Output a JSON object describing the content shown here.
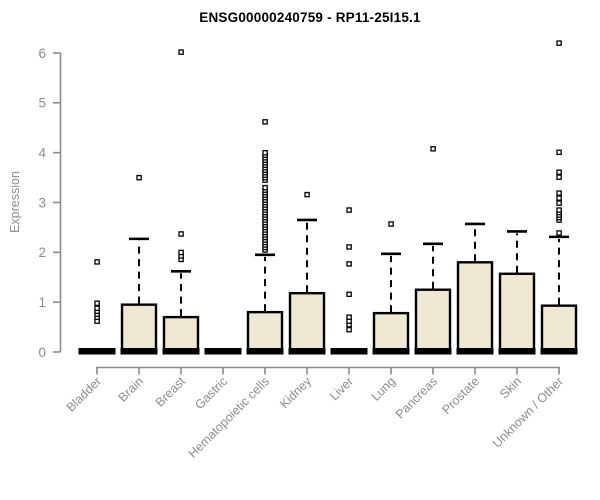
{
  "chart_data": {
    "type": "boxplot",
    "title": "ENSG00000240759 - RP11-25I15.1",
    "ylabel": "Expression",
    "xlabel": "",
    "ylim": [
      0,
      6
    ],
    "yticks": [
      0,
      1,
      2,
      3,
      4,
      5,
      6
    ],
    "ytick_labels": [
      "0",
      "1",
      "2",
      "3",
      "4",
      "5",
      "6"
    ],
    "grid": false,
    "legend": "none",
    "categories": [
      "Bladder",
      "Brain",
      "Breast",
      "Gastric",
      "Hematopoietic cells",
      "Kidney",
      "Liver",
      "Lung",
      "Pancreas",
      "Prostate",
      "Skin",
      "Unknown / Other"
    ],
    "series": [
      {
        "name": "Bladder",
        "whisker_low": 0,
        "q1": 0,
        "median": 0,
        "q3": 0.02,
        "whisker_high": 0.02,
        "outliers": [
          0.62,
          0.7,
          0.76,
          0.82,
          0.88,
          0.98,
          1.81
        ]
      },
      {
        "name": "Brain",
        "whisker_low": 0,
        "q1": 0,
        "median": 0,
        "q3": 0.95,
        "whisker_high": 2.27,
        "outliers": [
          3.5
        ]
      },
      {
        "name": "Breast",
        "whisker_low": 0,
        "q1": 0,
        "median": 0,
        "q3": 0.7,
        "whisker_high": 1.62,
        "outliers": [
          1.86,
          1.93,
          2.0,
          2.37,
          6.02
        ]
      },
      {
        "name": "Gastric",
        "whisker_low": 0,
        "q1": 0,
        "median": 0,
        "q3": 0.02,
        "whisker_high": 0.02,
        "outliers": []
      },
      {
        "name": "Hematopoietic cells",
        "whisker_low": 0,
        "q1": 0,
        "median": 0,
        "q3": 0.8,
        "whisker_high": 1.95,
        "outliers": [
          2.05,
          2.1,
          2.15,
          2.2,
          2.25,
          2.3,
          2.35,
          2.4,
          2.45,
          2.5,
          2.55,
          2.6,
          2.65,
          2.7,
          2.75,
          2.8,
          2.85,
          2.9,
          2.95,
          3.0,
          3.05,
          3.1,
          3.15,
          3.2,
          3.25,
          3.3,
          3.45,
          3.5,
          3.55,
          3.6,
          3.65,
          3.7,
          3.75,
          3.8,
          3.85,
          3.9,
          3.95,
          4.0,
          4.62
        ]
      },
      {
        "name": "Kidney",
        "whisker_low": 0,
        "q1": 0,
        "median": 0,
        "q3": 1.18,
        "whisker_high": 2.65,
        "outliers": [
          3.16
        ]
      },
      {
        "name": "Liver",
        "whisker_low": 0,
        "q1": 0,
        "median": 0,
        "q3": 0.02,
        "whisker_high": 0.02,
        "outliers": [
          0.45,
          0.55,
          0.62,
          0.7,
          1.16,
          1.77,
          2.11,
          2.85
        ]
      },
      {
        "name": "Lung",
        "whisker_low": 0,
        "q1": 0,
        "median": 0,
        "q3": 0.78,
        "whisker_high": 1.97,
        "outliers": [
          2.57
        ]
      },
      {
        "name": "Pancreas",
        "whisker_low": 0,
        "q1": 0,
        "median": 0,
        "q3": 1.25,
        "whisker_high": 2.17,
        "outliers": [
          4.08
        ]
      },
      {
        "name": "Prostate",
        "whisker_low": 0,
        "q1": 0,
        "median": 0,
        "q3": 1.8,
        "whisker_high": 2.57,
        "outliers": []
      },
      {
        "name": "Skin",
        "whisker_low": 0,
        "q1": 0,
        "median": 0,
        "q3": 1.57,
        "whisker_high": 2.42,
        "outliers": []
      },
      {
        "name": "Unknown / Other",
        "whisker_low": 0,
        "q1": 0,
        "median": 0,
        "q3": 0.93,
        "whisker_high": 2.31,
        "outliers": [
          2.39,
          2.65,
          2.7,
          2.75,
          2.8,
          2.85,
          2.99,
          3.09,
          3.19,
          3.51,
          3.61,
          4.01,
          6.2
        ]
      }
    ]
  },
  "colors": {
    "background": "#FFFFFF",
    "box_fill": "#EEE8D2",
    "box_stroke": "#000000",
    "median_color": "#000000",
    "whisker_color": "#000000",
    "outlier_stroke": "#000000",
    "outlier_fill": "#FFFFFF",
    "axis_color": "#8C8C8C",
    "tick_label_color": "#8C8C8C",
    "title_color": "#000000"
  }
}
